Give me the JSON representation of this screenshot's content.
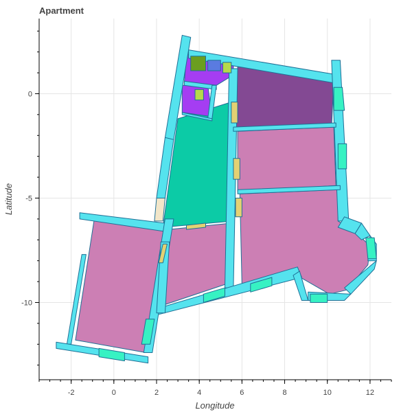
{
  "chart_data": {
    "type": "map",
    "title": "Apartment",
    "xlabel": "Longitude",
    "ylabel": "Latitude",
    "xlim": [
      -3.5,
      13
    ],
    "ylim": [
      -13.7,
      3.6
    ],
    "xticks": [
      -2,
      0,
      2,
      4,
      6,
      8,
      10,
      12
    ],
    "yticks": [
      -10,
      -5,
      0
    ],
    "minor_x_step": 0.5,
    "minor_y_step": 1,
    "grid": true,
    "colors": {
      "wall": "#55e3ee",
      "room_pink": "#cc7fb4",
      "room_teal": "#0ccba6",
      "room_plum": "#834993",
      "room_purple": "#a53df2",
      "door_green": "#37f2c3",
      "door_yellow": "#e3d173",
      "outline": "#1f6f95"
    },
    "walls": [
      {
        "name": "wall-top",
        "color": "#55e3ee",
        "points": [
          [
            3.5,
            2.1
          ],
          [
            10.5,
            0.9
          ],
          [
            10.4,
            0.5
          ],
          [
            3.5,
            1.7
          ]
        ]
      },
      {
        "name": "wall-nw-vertical",
        "color": "#55e3ee",
        "points": [
          [
            3.2,
            2.8
          ],
          [
            3.6,
            2.7
          ],
          [
            2.8,
            -2.2
          ],
          [
            2.4,
            -2.1
          ]
        ]
      },
      {
        "name": "wall-upper-mid-vertical",
        "color": "#55e3ee",
        "points": [
          [
            5.4,
            1.2
          ],
          [
            5.8,
            1.2
          ],
          [
            5.6,
            -9.3
          ],
          [
            5.2,
            -9.3
          ]
        ]
      },
      {
        "name": "wall-east-vertical",
        "color": "#55e3ee",
        "points": [
          [
            10.2,
            1.6
          ],
          [
            10.6,
            1.6
          ],
          [
            11.0,
            -6.1
          ],
          [
            10.5,
            -6.1
          ]
        ]
      },
      {
        "name": "wall-mid-h1",
        "color": "#55e3ee",
        "points": [
          [
            5.6,
            -1.6
          ],
          [
            10.4,
            -1.4
          ],
          [
            10.4,
            -1.6
          ],
          [
            5.6,
            -1.8
          ]
        ]
      },
      {
        "name": "wall-mid-h2",
        "color": "#55e3ee",
        "points": [
          [
            5.8,
            -4.6
          ],
          [
            10.6,
            -4.4
          ],
          [
            10.6,
            -4.6
          ],
          [
            5.8,
            -4.8
          ]
        ]
      },
      {
        "name": "wall-south",
        "color": "#55e3ee",
        "points": [
          [
            2.0,
            -10.3
          ],
          [
            8.6,
            -8.3
          ],
          [
            8.8,
            -8.8
          ],
          [
            2.0,
            -10.6
          ]
        ]
      },
      {
        "name": "wall-west-lower",
        "color": "#55e3ee",
        "points": [
          [
            -1.5,
            -7.7
          ],
          [
            -1.3,
            -7.7
          ],
          [
            -2.0,
            -12.0
          ],
          [
            -2.2,
            -12.0
          ]
        ]
      },
      {
        "name": "wall-left-top",
        "color": "#55e3ee",
        "points": [
          [
            -1.6,
            -5.7
          ],
          [
            2.4,
            -6.2
          ],
          [
            2.4,
            -6.6
          ],
          [
            -1.6,
            -6.0
          ]
        ]
      },
      {
        "name": "wall-bottom-left",
        "color": "#55e3ee",
        "points": [
          [
            -2.7,
            -11.9
          ],
          [
            1.6,
            -12.6
          ],
          [
            1.6,
            -12.9
          ],
          [
            -2.7,
            -12.2
          ]
        ]
      },
      {
        "name": "wall-center-vertical",
        "color": "#55e3ee",
        "points": [
          [
            2.4,
            -6.0
          ],
          [
            2.8,
            -6.0
          ],
          [
            1.8,
            -12.4
          ],
          [
            1.4,
            -12.4
          ]
        ]
      },
      {
        "name": "wall-purple-inner",
        "color": "#55e3ee",
        "points": [
          [
            3.3,
            0.6
          ],
          [
            4.8,
            0.4
          ],
          [
            4.8,
            0.2
          ],
          [
            3.3,
            0.4
          ]
        ]
      },
      {
        "name": "wall-purple-inner-vert",
        "color": "#55e3ee",
        "points": [
          [
            4.6,
            0.4
          ],
          [
            4.8,
            0.4
          ],
          [
            4.6,
            -1.2
          ],
          [
            4.4,
            -1.2
          ]
        ]
      },
      {
        "name": "wall-purple-bottom",
        "color": "#55e3ee",
        "points": [
          [
            3.2,
            -0.9
          ],
          [
            4.6,
            -1.2
          ],
          [
            4.6,
            -1.3
          ],
          [
            3.2,
            -1.0
          ]
        ]
      },
      {
        "name": "wall-bay-1",
        "color": "#55e3ee",
        "points": [
          [
            10.8,
            -5.9
          ],
          [
            11.6,
            -6.2
          ],
          [
            11.3,
            -6.7
          ],
          [
            10.5,
            -6.4
          ]
        ]
      },
      {
        "name": "wall-bay-2",
        "color": "#55e3ee",
        "points": [
          [
            11.6,
            -6.2
          ],
          [
            12.0,
            -6.8
          ],
          [
            11.6,
            -7.0
          ],
          [
            11.3,
            -6.7
          ]
        ]
      },
      {
        "name": "wall-bay-3",
        "color": "#55e3ee",
        "points": [
          [
            12.0,
            -6.8
          ],
          [
            12.3,
            -7.2
          ],
          [
            12.3,
            -8.0
          ],
          [
            11.9,
            -8.0
          ]
        ]
      },
      {
        "name": "wall-bay-4",
        "color": "#55e3ee",
        "points": [
          [
            12.3,
            -8.0
          ],
          [
            12.2,
            -8.4
          ],
          [
            11.1,
            -9.6
          ],
          [
            10.8,
            -9.3
          ]
        ]
      },
      {
        "name": "wall-bay-5",
        "color": "#55e3ee",
        "points": [
          [
            11.1,
            -9.6
          ],
          [
            10.8,
            -9.9
          ],
          [
            9.1,
            -9.9
          ],
          [
            9.1,
            -9.5
          ]
        ]
      },
      {
        "name": "wall-bay-6",
        "color": "#55e3ee",
        "points": [
          [
            9.1,
            -9.9
          ],
          [
            8.8,
            -9.9
          ],
          [
            8.4,
            -8.7
          ],
          [
            8.7,
            -8.5
          ]
        ]
      },
      {
        "name": "wall-left-lower-vert",
        "color": "#55e3ee",
        "points": [
          [
            2.6,
            -7.1
          ],
          [
            2.2,
            -7.1
          ],
          [
            2.0,
            -10.5
          ],
          [
            2.4,
            -10.5
          ]
        ]
      },
      {
        "name": "wall-left-stair",
        "color": "#55e3ee",
        "points": [
          [
            2.4,
            -2.1
          ],
          [
            2.8,
            -2.2
          ],
          [
            2.4,
            -5.0
          ],
          [
            2.0,
            -5.0
          ]
        ]
      }
    ],
    "rooms": [
      {
        "name": "room-upper-right",
        "color": "#834993",
        "points": [
          [
            5.8,
            1.3
          ],
          [
            10.3,
            0.7
          ],
          [
            10.2,
            -1.6
          ],
          [
            5.7,
            -1.6
          ]
        ]
      },
      {
        "name": "room-middle-right",
        "color": "#cc7fb4",
        "points": [
          [
            5.8,
            -1.8
          ],
          [
            10.3,
            -1.6
          ],
          [
            10.4,
            -4.4
          ],
          [
            5.8,
            -4.7
          ]
        ]
      },
      {
        "name": "room-right-large",
        "color": "#cc7fb4",
        "points": [
          [
            5.9,
            -4.8
          ],
          [
            10.5,
            -4.6
          ],
          [
            10.5,
            -6.1
          ],
          [
            11.3,
            -6.6
          ],
          [
            12.0,
            -7.3
          ],
          [
            11.9,
            -8.2
          ],
          [
            10.9,
            -9.4
          ],
          [
            10.1,
            -9.6
          ],
          [
            8.4,
            -8.6
          ],
          [
            6.5,
            -9.0
          ],
          [
            6.0,
            -9.2
          ]
        ]
      },
      {
        "name": "room-center",
        "color": "#cc7fb4",
        "points": [
          [
            2.6,
            -6.5
          ],
          [
            5.5,
            -6.2
          ],
          [
            5.6,
            -9.0
          ],
          [
            2.1,
            -10.2
          ]
        ]
      },
      {
        "name": "room-left",
        "color": "#cc7fb4",
        "points": [
          [
            -0.9,
            -5.9
          ],
          [
            2.4,
            -6.5
          ],
          [
            1.5,
            -12.4
          ],
          [
            -1.8,
            -11.8
          ]
        ]
      },
      {
        "name": "room-teal",
        "color": "#0ccba6",
        "points": [
          [
            3.0,
            -1.2
          ],
          [
            5.5,
            -0.4
          ],
          [
            5.6,
            -6.1
          ],
          [
            2.3,
            -6.4
          ]
        ]
      },
      {
        "name": "room-purple-top",
        "color": "#a53df2",
        "points": [
          [
            3.4,
            1.9
          ],
          [
            5.6,
            1.5
          ],
          [
            5.6,
            0.9
          ],
          [
            4.8,
            0.4
          ],
          [
            3.3,
            0.5
          ]
        ]
      },
      {
        "name": "room-purple-lower",
        "color": "#a53df2",
        "points": [
          [
            3.2,
            0.4
          ],
          [
            4.4,
            0.4
          ],
          [
            4.6,
            -1.1
          ],
          [
            3.2,
            -0.9
          ]
        ]
      }
    ],
    "doors": [
      {
        "name": "door-top-green",
        "color": "#6b9e1f",
        "points": [
          [
            3.6,
            1.8
          ],
          [
            4.3,
            1.8
          ],
          [
            4.3,
            1.1
          ],
          [
            3.6,
            1.1
          ]
        ]
      },
      {
        "name": "door-top-blue",
        "color": "#5a7be0",
        "points": [
          [
            4.4,
            1.6
          ],
          [
            5.0,
            1.6
          ],
          [
            5.0,
            1.1
          ],
          [
            4.4,
            1.1
          ]
        ]
      },
      {
        "name": "door-top-yellow",
        "color": "#b6d94a",
        "points": [
          [
            5.1,
            1.5
          ],
          [
            5.5,
            1.5
          ],
          [
            5.5,
            1.0
          ],
          [
            5.1,
            1.0
          ]
        ]
      },
      {
        "name": "door-inner-yellow",
        "color": "#b6d94a",
        "points": [
          [
            3.8,
            0.2
          ],
          [
            4.2,
            0.2
          ],
          [
            4.2,
            -0.3
          ],
          [
            3.8,
            -0.3
          ]
        ]
      },
      {
        "name": "door-east-1",
        "color": "#37f2c3",
        "points": [
          [
            10.3,
            0.3
          ],
          [
            10.7,
            0.3
          ],
          [
            10.8,
            -0.8
          ],
          [
            10.3,
            -0.8
          ]
        ]
      },
      {
        "name": "door-east-2",
        "color": "#37f2c3",
        "points": [
          [
            10.5,
            -2.4
          ],
          [
            10.9,
            -2.4
          ],
          [
            10.9,
            -3.6
          ],
          [
            10.5,
            -3.6
          ]
        ]
      },
      {
        "name": "door-mid-y1",
        "color": "#e3d173",
        "points": [
          [
            5.5,
            -0.4
          ],
          [
            5.8,
            -0.4
          ],
          [
            5.8,
            -1.4
          ],
          [
            5.5,
            -1.4
          ]
        ]
      },
      {
        "name": "door-mid-y2",
        "color": "#e3d173",
        "points": [
          [
            5.6,
            -3.1
          ],
          [
            5.9,
            -3.1
          ],
          [
            5.9,
            -4.1
          ],
          [
            5.6,
            -4.1
          ]
        ]
      },
      {
        "name": "door-mid-y3",
        "color": "#e3d173",
        "points": [
          [
            5.7,
            -5.0
          ],
          [
            6.0,
            -5.0
          ],
          [
            6.0,
            -5.9
          ],
          [
            5.7,
            -5.9
          ]
        ]
      },
      {
        "name": "door-west-beige",
        "color": "#f2e6c9",
        "points": [
          [
            2.0,
            -5.0
          ],
          [
            2.4,
            -5.0
          ],
          [
            2.3,
            -6.1
          ],
          [
            1.9,
            -6.1
          ]
        ]
      },
      {
        "name": "door-yellow-left",
        "color": "#e3d173",
        "points": [
          [
            2.3,
            -7.2
          ],
          [
            2.5,
            -7.2
          ],
          [
            2.3,
            -8.1
          ],
          [
            2.1,
            -8.1
          ]
        ]
      },
      {
        "name": "door-south-1",
        "color": "#37f2c3",
        "points": [
          [
            4.2,
            -9.6
          ],
          [
            5.2,
            -9.3
          ],
          [
            5.2,
            -9.7
          ],
          [
            4.2,
            -10.0
          ]
        ]
      },
      {
        "name": "door-south-2",
        "color": "#37f2c3",
        "points": [
          [
            6.4,
            -9.1
          ],
          [
            7.4,
            -8.8
          ],
          [
            7.4,
            -9.2
          ],
          [
            6.4,
            -9.5
          ]
        ]
      },
      {
        "name": "door-south-3",
        "color": "#37f2c3",
        "points": [
          [
            9.2,
            -9.6
          ],
          [
            10.0,
            -9.6
          ],
          [
            10.0,
            -10.0
          ],
          [
            9.2,
            -10.0
          ]
        ]
      },
      {
        "name": "door-bottom-left",
        "color": "#37f2c3",
        "points": [
          [
            -0.7,
            -12.2
          ],
          [
            0.5,
            -12.4
          ],
          [
            0.5,
            -12.8
          ],
          [
            -0.7,
            -12.6
          ]
        ]
      },
      {
        "name": "door-left-lower",
        "color": "#37f2c3",
        "points": [
          [
            1.5,
            -10.8
          ],
          [
            1.9,
            -10.8
          ],
          [
            1.7,
            -12.0
          ],
          [
            1.3,
            -12.0
          ]
        ]
      },
      {
        "name": "door-yellow-bottom",
        "color": "#e3d173",
        "points": [
          [
            3.4,
            -6.3
          ],
          [
            4.3,
            -6.2
          ],
          [
            4.3,
            -6.4
          ],
          [
            3.4,
            -6.5
          ]
        ]
      },
      {
        "name": "door-bay",
        "color": "#37f2c3",
        "points": [
          [
            11.8,
            -6.9
          ],
          [
            12.2,
            -6.9
          ],
          [
            12.3,
            -7.9
          ],
          [
            11.9,
            -7.9
          ]
        ]
      }
    ]
  }
}
